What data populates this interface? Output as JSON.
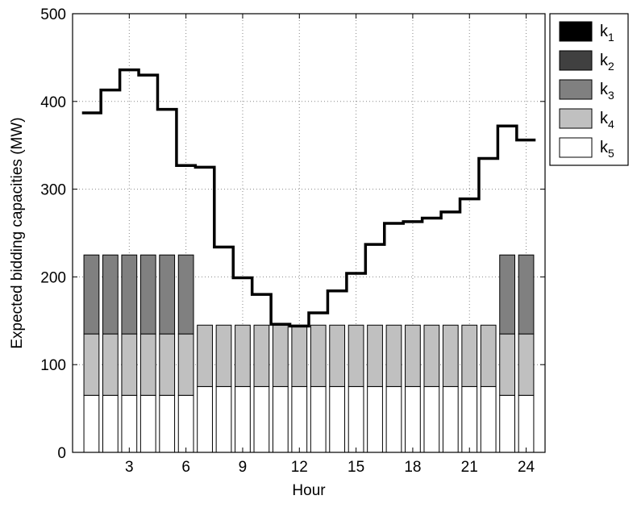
{
  "chart_data": {
    "type": "bar",
    "subtype": "stacked-bar-with-step-line",
    "xlabel": "Hour",
    "ylabel": "Expected bidding capacities (MW)",
    "xlim": [
      0,
      25
    ],
    "ylim": [
      0,
      500
    ],
    "xticks": [
      3,
      6,
      9,
      12,
      15,
      18,
      21,
      24
    ],
    "yticks": [
      0,
      100,
      200,
      300,
      400,
      500
    ],
    "grid": true,
    "legend_position": "outside-right-top",
    "hours": [
      1,
      2,
      3,
      4,
      5,
      6,
      7,
      8,
      9,
      10,
      11,
      12,
      13,
      14,
      15,
      16,
      17,
      18,
      19,
      20,
      21,
      22,
      23,
      24
    ],
    "series": [
      {
        "name": "k",
        "sub": "1",
        "color": "#000000",
        "values": [
          0,
          0,
          0,
          0,
          0,
          0,
          0,
          0,
          0,
          0,
          0,
          0,
          0,
          0,
          0,
          0,
          0,
          0,
          0,
          0,
          0,
          0,
          0,
          0
        ]
      },
      {
        "name": "k",
        "sub": "2",
        "color": "#404040",
        "values": [
          0,
          0,
          0,
          0,
          0,
          0,
          0,
          0,
          0,
          0,
          0,
          0,
          0,
          0,
          0,
          0,
          0,
          0,
          0,
          0,
          0,
          0,
          0,
          0
        ]
      },
      {
        "name": "k",
        "sub": "3",
        "color": "#808080",
        "values": [
          90,
          90,
          90,
          90,
          90,
          90,
          0,
          0,
          0,
          0,
          0,
          0,
          0,
          0,
          0,
          0,
          0,
          0,
          0,
          0,
          0,
          0,
          90,
          90
        ]
      },
      {
        "name": "k",
        "sub": "4",
        "color": "#c0c0c0",
        "values": [
          70,
          70,
          70,
          70,
          70,
          70,
          70,
          70,
          70,
          70,
          70,
          70,
          70,
          70,
          70,
          70,
          70,
          70,
          70,
          70,
          70,
          70,
          70,
          70
        ]
      },
      {
        "name": "k",
        "sub": "5",
        "color": "#ffffff",
        "values": [
          65,
          65,
          65,
          65,
          65,
          65,
          75,
          75,
          75,
          75,
          75,
          75,
          75,
          75,
          75,
          75,
          75,
          75,
          75,
          75,
          75,
          75,
          65,
          65
        ]
      }
    ],
    "line": {
      "values": [
        387,
        413,
        436,
        430,
        391,
        327,
        325,
        234,
        199,
        180,
        146,
        144,
        159,
        184,
        204,
        237,
        261,
        263,
        267,
        274,
        289,
        335,
        372,
        356
      ]
    }
  }
}
